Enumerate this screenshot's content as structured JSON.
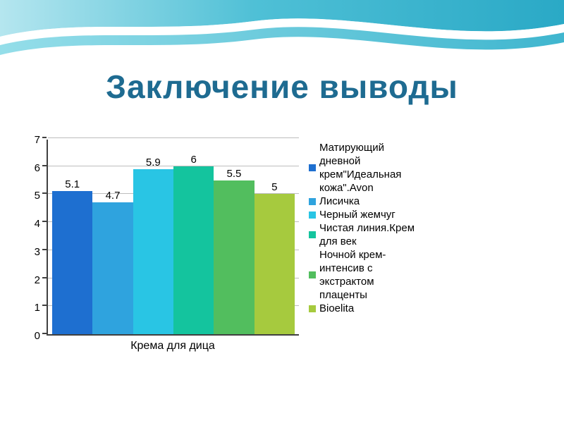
{
  "slide": {
    "title": "Заключение выводы"
  },
  "chart_data": {
    "type": "bar",
    "title": "",
    "xlabel": "Крема для дица",
    "ylabel": "",
    "ylim": [
      0,
      7
    ],
    "yticks": [
      0,
      1,
      2,
      3,
      4,
      5,
      6,
      7
    ],
    "grid": true,
    "legend_position": "right",
    "series": [
      {
        "name": "Матирующий дневной крем\"Идеальная кожа\".Avon",
        "value": 5.1,
        "label": "5.1",
        "color": "#1e6fd0"
      },
      {
        "name": "Лисичка",
        "value": 4.7,
        "label": "4.7",
        "color": "#2fa3de"
      },
      {
        "name": "Черный жемчуг",
        "value": 5.9,
        "label": "5.9",
        "color": "#29c5e4"
      },
      {
        "name": "Чистая линия.Крем для век",
        "value": 6,
        "label": "6",
        "color": "#14c49e"
      },
      {
        "name": "Ночной крем-интенсив с экстрактом плаценты",
        "value": 5.5,
        "label": "5.5",
        "color": "#52be5e"
      },
      {
        "name": "Bioelita",
        "value": 5,
        "label": "5",
        "color": "#a6ca3e"
      }
    ]
  }
}
